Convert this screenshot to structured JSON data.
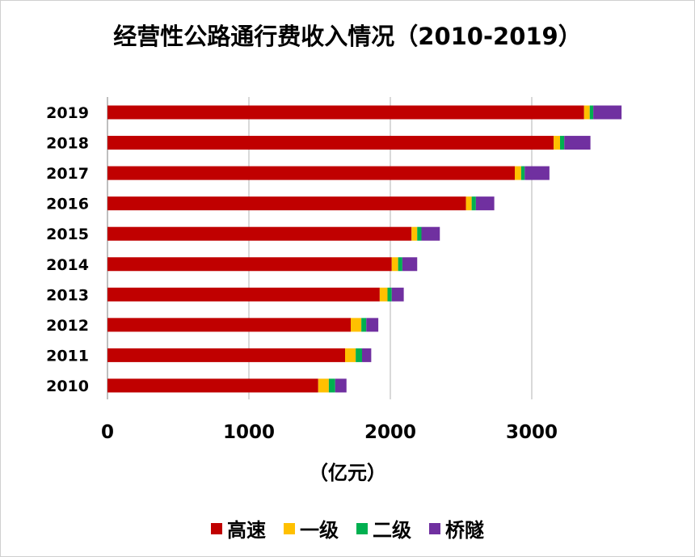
{
  "chart_data": {
    "type": "bar",
    "orientation": "horizontal",
    "stacked": true,
    "title": "经营性公路通行费收入情况（2010-2019）",
    "xlabel": "（亿元）",
    "categories": [
      "2010",
      "2011",
      "2012",
      "2013",
      "2014",
      "2015",
      "2016",
      "2017",
      "2018",
      "2019"
    ],
    "xlim": [
      0,
      4000
    ],
    "xticks": [
      0,
      1000,
      2000,
      3000
    ],
    "grid": true,
    "legend_position": "bottom",
    "series": [
      {
        "name": "高速",
        "color": "#C00000",
        "values": [
          1490,
          1680,
          1720,
          1925,
          2010,
          2150,
          2535,
          2880,
          3155,
          3370
        ]
      },
      {
        "name": "一级",
        "color": "#FFC000",
        "values": [
          75,
          75,
          75,
          55,
          45,
          40,
          40,
          45,
          45,
          40
        ]
      },
      {
        "name": "二级",
        "color": "#00B050",
        "values": [
          45,
          45,
          35,
          30,
          30,
          30,
          30,
          25,
          30,
          25
        ]
      },
      {
        "name": "桥隧",
        "color": "#7030A0",
        "values": [
          80,
          65,
          85,
          85,
          105,
          130,
          130,
          175,
          185,
          200
        ]
      }
    ]
  }
}
